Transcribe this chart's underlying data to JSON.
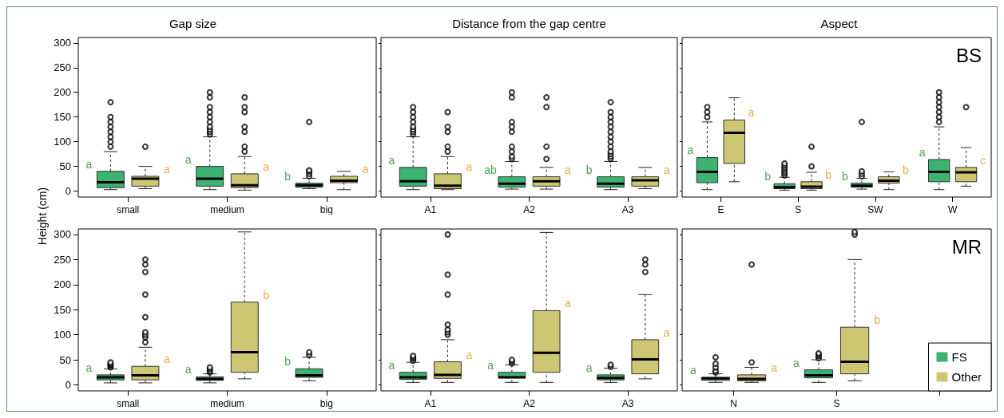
{
  "chart_data": [
    {
      "type": "box",
      "title": "Gap size",
      "ylabel": "Height (cm)",
      "categories": [
        "small",
        "medium",
        "big"
      ],
      "ylim": [
        -12,
        311
      ],
      "yticks": [
        0,
        50,
        100,
        150,
        200,
        250,
        300
      ],
      "series": [
        {
          "color": "#3cb371",
          "value_labels": [
            "a",
            "a",
            "b"
          ],
          "boxes": [
            {
              "low": 3,
              "q1": 7,
              "median": 18,
              "q3": 40,
              "high": 80,
              "outliers": [
                90,
                100,
                110,
                120,
                130,
                140,
                150,
                180
              ]
            },
            {
              "low": 3,
              "q1": 10,
              "median": 25,
              "q3": 50,
              "high": 110,
              "outliers": [
                115,
                120,
                125,
                130,
                140,
                150,
                160,
                170,
                190,
                200
              ]
            },
            {
              "low": 5,
              "q1": 8,
              "median": 12,
              "q3": 16,
              "high": 26,
              "outliers": [
                30,
                35,
                40,
                42,
                140
              ]
            }
          ]
        },
        {
          "color": "#cdc673",
          "value_labels": [
            "a",
            "a",
            "a"
          ],
          "boxes": [
            {
              "low": 5,
              "q1": 10,
              "median": 25,
              "q3": 30,
              "high": 50,
              "outliers": [
                90
              ]
            },
            {
              "low": 2,
              "q1": 7,
              "median": 12,
              "q3": 35,
              "high": 70,
              "outliers": [
                80,
                90,
                120,
                130,
                160,
                170,
                190
              ]
            },
            {
              "low": 3,
              "q1": 17,
              "median": 21,
              "q3": 30,
              "high": 40
            }
          ]
        }
      ]
    },
    {
      "type": "box",
      "title": "Distance from the gap centre",
      "categories": [
        "A1",
        "A2",
        "A3"
      ],
      "ylim": [
        -12,
        311
      ],
      "yticks": [
        0,
        50,
        100,
        150,
        200,
        250,
        300
      ],
      "tick_labels": "x",
      "series": [
        {
          "color": "#3cb371",
          "value_labels": [
            "a",
            "ab",
            "b"
          ],
          "boxes": [
            {
              "low": 3,
              "q1": 10,
              "median": 20,
              "q3": 48,
              "high": 110,
              "outliers": [
                115,
                120,
                125,
                130,
                140,
                150,
                160,
                170
              ]
            },
            {
              "low": 4,
              "q1": 8,
              "median": 15,
              "q3": 29,
              "high": 60,
              "outliers": [
                65,
                70,
                80,
                90,
                120,
                130,
                140,
                190,
                200
              ]
            },
            {
              "low": 3,
              "q1": 8,
              "median": 15,
              "q3": 29,
              "high": 60,
              "outliers": [
                65,
                70,
                75,
                80,
                90,
                100,
                110,
                120,
                130,
                140,
                150,
                160,
                180
              ]
            }
          ]
        },
        {
          "color": "#cdc673",
          "value_labels": [
            "a",
            "a",
            "a"
          ],
          "boxes": [
            {
              "low": 3,
              "q1": 5,
              "median": 11,
              "q3": 35,
              "high": 70,
              "outliers": [
                80,
                90,
                120,
                130,
                160
              ]
            },
            {
              "low": 4,
              "q1": 10,
              "median": 20,
              "q3": 29,
              "high": 48,
              "outliers": [
                65,
                90,
                170,
                190
              ]
            },
            {
              "low": 5,
              "q1": 10,
              "median": 22,
              "q3": 29,
              "high": 48
            }
          ]
        }
      ]
    },
    {
      "type": "box",
      "title": "Aspect",
      "annotations": [
        "BS"
      ],
      "categories": [
        "E",
        "S",
        "SW",
        "W"
      ],
      "ylim": [
        -12,
        311
      ],
      "yticks": [
        0,
        50,
        100,
        150,
        200,
        250,
        300
      ],
      "tick_labels": "x",
      "series": [
        {
          "color": "#3cb371",
          "value_labels": [
            "a",
            "b",
            "b",
            "a"
          ],
          "boxes": [
            {
              "low": 3,
              "q1": 17,
              "median": 39,
              "q3": 68,
              "high": 140,
              "outliers": [
                150,
                160,
                170
              ]
            },
            {
              "low": 2,
              "q1": 5,
              "median": 8,
              "q3": 15,
              "high": 28,
              "outliers": [
                32,
                36,
                40,
                44,
                48,
                52,
                56
              ]
            },
            {
              "low": 4,
              "q1": 8,
              "median": 11,
              "q3": 16,
              "high": 26,
              "outliers": [
                30,
                35,
                40,
                140
              ]
            },
            {
              "low": 3,
              "q1": 19,
              "median": 39,
              "q3": 64,
              "high": 130,
              "outliers": [
                140,
                150,
                160,
                170,
                180,
                190,
                200
              ]
            }
          ]
        },
        {
          "color": "#cdc673",
          "value_labels": [
            "a",
            "b",
            "b",
            "c"
          ],
          "boxes": [
            {
              "low": 19,
              "q1": 56,
              "median": 118,
              "q3": 144,
              "high": 189
            },
            {
              "low": 2,
              "q1": 5,
              "median": 9,
              "q3": 19,
              "high": 38,
              "outliers": [
                50,
                90
              ]
            },
            {
              "low": 3,
              "q1": 16,
              "median": 21,
              "q3": 29,
              "high": 39
            },
            {
              "low": 10,
              "q1": 19,
              "median": 38,
              "q3": 48,
              "high": 88,
              "outliers": [
                170
              ]
            }
          ]
        }
      ]
    },
    {
      "type": "box",
      "categories": [
        "small",
        "medium",
        "big"
      ],
      "ylim": [
        -12,
        311
      ],
      "yticks": [
        0,
        50,
        100,
        150,
        200,
        250,
        300
      ],
      "series": [
        {
          "color": "#3cb371",
          "value_labels": [
            "a",
            "a",
            "b"
          ],
          "boxes": [
            {
              "low": 4,
              "q1": 10,
              "median": 15,
              "q3": 20,
              "high": 32,
              "outliers": [
                35,
                38,
                40,
                42,
                45
              ]
            },
            {
              "low": 4,
              "q1": 9,
              "median": 12,
              "q3": 16,
              "high": 22,
              "outliers": [
                25,
                28,
                32,
                35
              ]
            },
            {
              "low": 8,
              "q1": 15,
              "median": 19,
              "q3": 32,
              "high": 55,
              "outliers": [
                60,
                65
              ]
            }
          ]
        },
        {
          "color": "#cdc673",
          "value_labels": [
            "a",
            "b",
            null
          ],
          "boxes": [
            {
              "low": 4,
              "q1": 10,
              "median": 19,
              "q3": 37,
              "high": 75,
              "outliers": [
                85,
                95,
                100,
                105,
                135,
                180,
                225,
                240,
                250
              ]
            },
            {
              "low": 12,
              "q1": 25,
              "median": 65,
              "q3": 165,
              "high": 305
            },
            null
          ]
        }
      ]
    },
    {
      "type": "box",
      "categories": [
        "A1",
        "A2",
        "A3"
      ],
      "ylim": [
        -12,
        311
      ],
      "yticks": [
        0,
        50,
        100,
        150,
        200,
        250,
        300
      ],
      "tick_labels": "x",
      "series": [
        {
          "color": "#3cb371",
          "value_labels": [
            "a",
            "a",
            "a"
          ],
          "boxes": [
            {
              "low": 5,
              "q1": 11,
              "median": 15,
              "q3": 25,
              "high": 45,
              "outliers": [
                48,
                52,
                55,
                58
              ]
            },
            {
              "low": 5,
              "q1": 14,
              "median": 15,
              "q3": 25,
              "high": 40,
              "outliers": [
                43,
                47,
                50
              ]
            },
            {
              "low": 5,
              "q1": 10,
              "median": 14,
              "q3": 20,
              "high": 33,
              "outliers": [
                36,
                40
              ]
            }
          ]
        },
        {
          "color": "#cdc673",
          "value_labels": [
            "a",
            "a",
            "a"
          ],
          "boxes": [
            {
              "low": 5,
              "q1": 13,
              "median": 20,
              "q3": 46,
              "high": 90,
              "outliers": [
                100,
                105,
                110,
                120,
                180,
                220,
                300
              ]
            },
            {
              "low": 5,
              "q1": 25,
              "median": 64,
              "q3": 148,
              "high": 304
            },
            {
              "low": 12,
              "q1": 22,
              "median": 51,
              "q3": 90,
              "high": 180,
              "outliers": [
                225,
                240,
                250
              ]
            }
          ]
        }
      ]
    },
    {
      "type": "box",
      "annotations": [
        "MR"
      ],
      "categories": [
        "N",
        "S",
        null
      ],
      "ylim": [
        -12,
        311
      ],
      "yticks": [
        0,
        50,
        100,
        150,
        200,
        250,
        300
      ],
      "tick_labels": "x",
      "legend": "bottom right",
      "series": [
        {
          "name": "FS",
          "color": "#3cb371",
          "value_labels": [
            "a",
            "a",
            null
          ],
          "boxes": [
            {
              "low": 5,
              "q1": 9,
              "median": 13,
              "q3": 15,
              "high": 22,
              "outliers": [
                25,
                28,
                35,
                42,
                55
              ]
            },
            {
              "low": 5,
              "q1": 14,
              "median": 19,
              "q3": 30,
              "high": 50,
              "outliers": [
                53,
                57,
                60,
                63
              ]
            },
            null
          ]
        },
        {
          "name": "Other",
          "color": "#cdc673",
          "value_labels": [
            "a",
            "b",
            null
          ],
          "boxes": [
            {
              "low": 5,
              "q1": 8,
              "median": 12,
              "q3": 20,
              "high": 35,
              "outliers": [
                45,
                240
              ]
            },
            {
              "low": 8,
              "q1": 22,
              "median": 46,
              "q3": 115,
              "high": 250,
              "outliers": [
                300,
                305
              ]
            },
            null
          ]
        }
      ]
    }
  ]
}
